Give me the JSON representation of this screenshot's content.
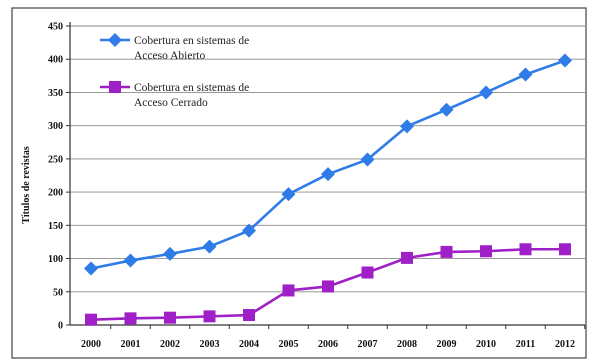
{
  "chart_data": {
    "type": "line",
    "ylabel": "Títulos de revistas",
    "xlabel": "",
    "title": "",
    "ylim": [
      0,
      450
    ],
    "yticks": [
      0,
      50,
      100,
      150,
      200,
      250,
      300,
      350,
      400,
      450
    ],
    "grid": true,
    "legend_position": "top-left",
    "categories": [
      "2000",
      "2001",
      "2002",
      "2003",
      "2004",
      "2005",
      "2006",
      "2007",
      "2008",
      "2009",
      "2010",
      "2011",
      "2012"
    ],
    "series": [
      {
        "name_lines": [
          "Cobertura en sistemas de",
          "Acceso Abierto"
        ],
        "color": "#2f7be8",
        "marker": "diamond",
        "values": [
          85,
          97,
          107,
          118,
          142,
          197,
          227,
          249,
          299,
          324,
          350,
          377,
          398
        ]
      },
      {
        "name_lines": [
          "Cobertura en sistemas de",
          "Acceso Cerrado"
        ],
        "color": "#a020c8",
        "marker": "square",
        "values": [
          8,
          10,
          11,
          13,
          15,
          52,
          58,
          79,
          101,
          110,
          111,
          114,
          114
        ]
      }
    ]
  }
}
